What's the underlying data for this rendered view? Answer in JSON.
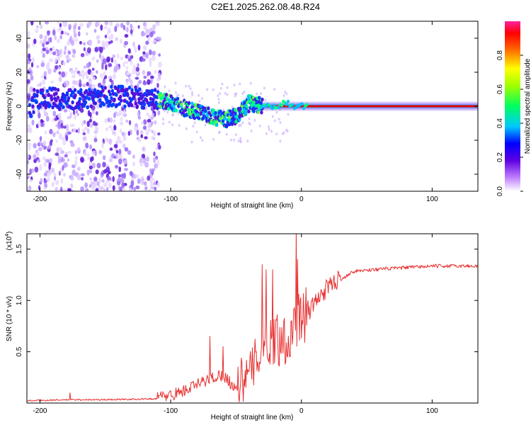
{
  "title": "C2E1.2025.262.08.48.R24",
  "chart_data": [
    {
      "type": "heatmap",
      "xlabel": "Height of straight line (km)",
      "ylabel": "Frequency (Hz)",
      "xlim": [
        -210,
        135
      ],
      "ylim": [
        -50,
        50
      ],
      "xticks": [
        -200,
        -100,
        0,
        100
      ],
      "yticks": [
        -40,
        -20,
        0,
        20,
        40
      ],
      "colorbar": {
        "label": "Normalized spectral amplitude",
        "range": [
          0,
          1
        ],
        "ticks": [
          "0.0",
          "0.2",
          "0.4",
          "0.6",
          "0.8"
        ],
        "tick_values": [
          0,
          0.2,
          0.4,
          0.6,
          0.8
        ],
        "colors": [
          "#ffffff",
          "#6000e0",
          "#0000ff",
          "#00ffff",
          "#00ff00",
          "#ffff00",
          "#ff0000",
          "#ff00a0"
        ]
      },
      "features": {
        "noise_region_x": [
          -210,
          -110
        ],
        "signal_path": [
          [
            -205,
            5
          ],
          [
            -180,
            4
          ],
          [
            -150,
            6
          ],
          [
            -120,
            5
          ],
          [
            -110,
            4
          ],
          [
            -100,
            2
          ],
          [
            -90,
            -1
          ],
          [
            -80,
            -3
          ],
          [
            -70,
            -6
          ],
          [
            -60,
            -8
          ],
          [
            -50,
            -6
          ],
          [
            -45,
            -2
          ],
          [
            -40,
            2
          ],
          [
            -35,
            1
          ],
          [
            -30,
            0
          ],
          [
            -20,
            0
          ],
          [
            -12,
            2
          ],
          [
            -5,
            0
          ],
          [
            0,
            0
          ],
          [
            50,
            0
          ],
          [
            100,
            0
          ],
          [
            135,
            0
          ]
        ],
        "strong_line_start_x": -30
      }
    },
    {
      "type": "line",
      "xlabel": "Height of straight line (km)",
      "ylabel": "SNR (10 * v/v)",
      "y_multiplier_label": "(x10",
      "y_multiplier_exp": "4",
      "y_multiplier_close": ")",
      "xlim": [
        -210,
        135
      ],
      "ylim": [
        0,
        1.65
      ],
      "xticks": [
        -200,
        -100,
        0,
        100
      ],
      "yticks": [
        0.5,
        1.0,
        1.5
      ],
      "ytick_labels": [
        "0.5",
        "1.0",
        "1.5"
      ],
      "line_color": "#e83030",
      "envelope": [
        [
          -210,
          0.02
        ],
        [
          -180,
          0.03
        ],
        [
          -150,
          0.03
        ],
        [
          -110,
          0.04
        ],
        [
          -100,
          0.06
        ],
        [
          -90,
          0.1
        ],
        [
          -80,
          0.16
        ],
        [
          -70,
          0.22
        ],
        [
          -60,
          0.26
        ],
        [
          -50,
          0.12
        ],
        [
          -40,
          0.2
        ],
        [
          -30,
          0.5
        ],
        [
          -20,
          0.55
        ],
        [
          -10,
          0.55
        ],
        [
          -5,
          0.7
        ],
        [
          0,
          0.72
        ],
        [
          10,
          0.95
        ],
        [
          20,
          1.1
        ],
        [
          30,
          1.2
        ],
        [
          40,
          1.28
        ],
        [
          60,
          1.3
        ],
        [
          100,
          1.33
        ],
        [
          135,
          1.33
        ]
      ],
      "spikes": [
        [
          -177,
          0.1
        ],
        [
          -70,
          0.65
        ],
        [
          -60,
          0.55
        ],
        [
          -30,
          1.35
        ],
        [
          -27,
          1.3
        ],
        [
          -22,
          1.3
        ],
        [
          -4,
          1.68
        ],
        [
          -3,
          1.4
        ],
        [
          -1,
          1.0
        ],
        [
          5,
          1.0
        ]
      ]
    }
  ]
}
